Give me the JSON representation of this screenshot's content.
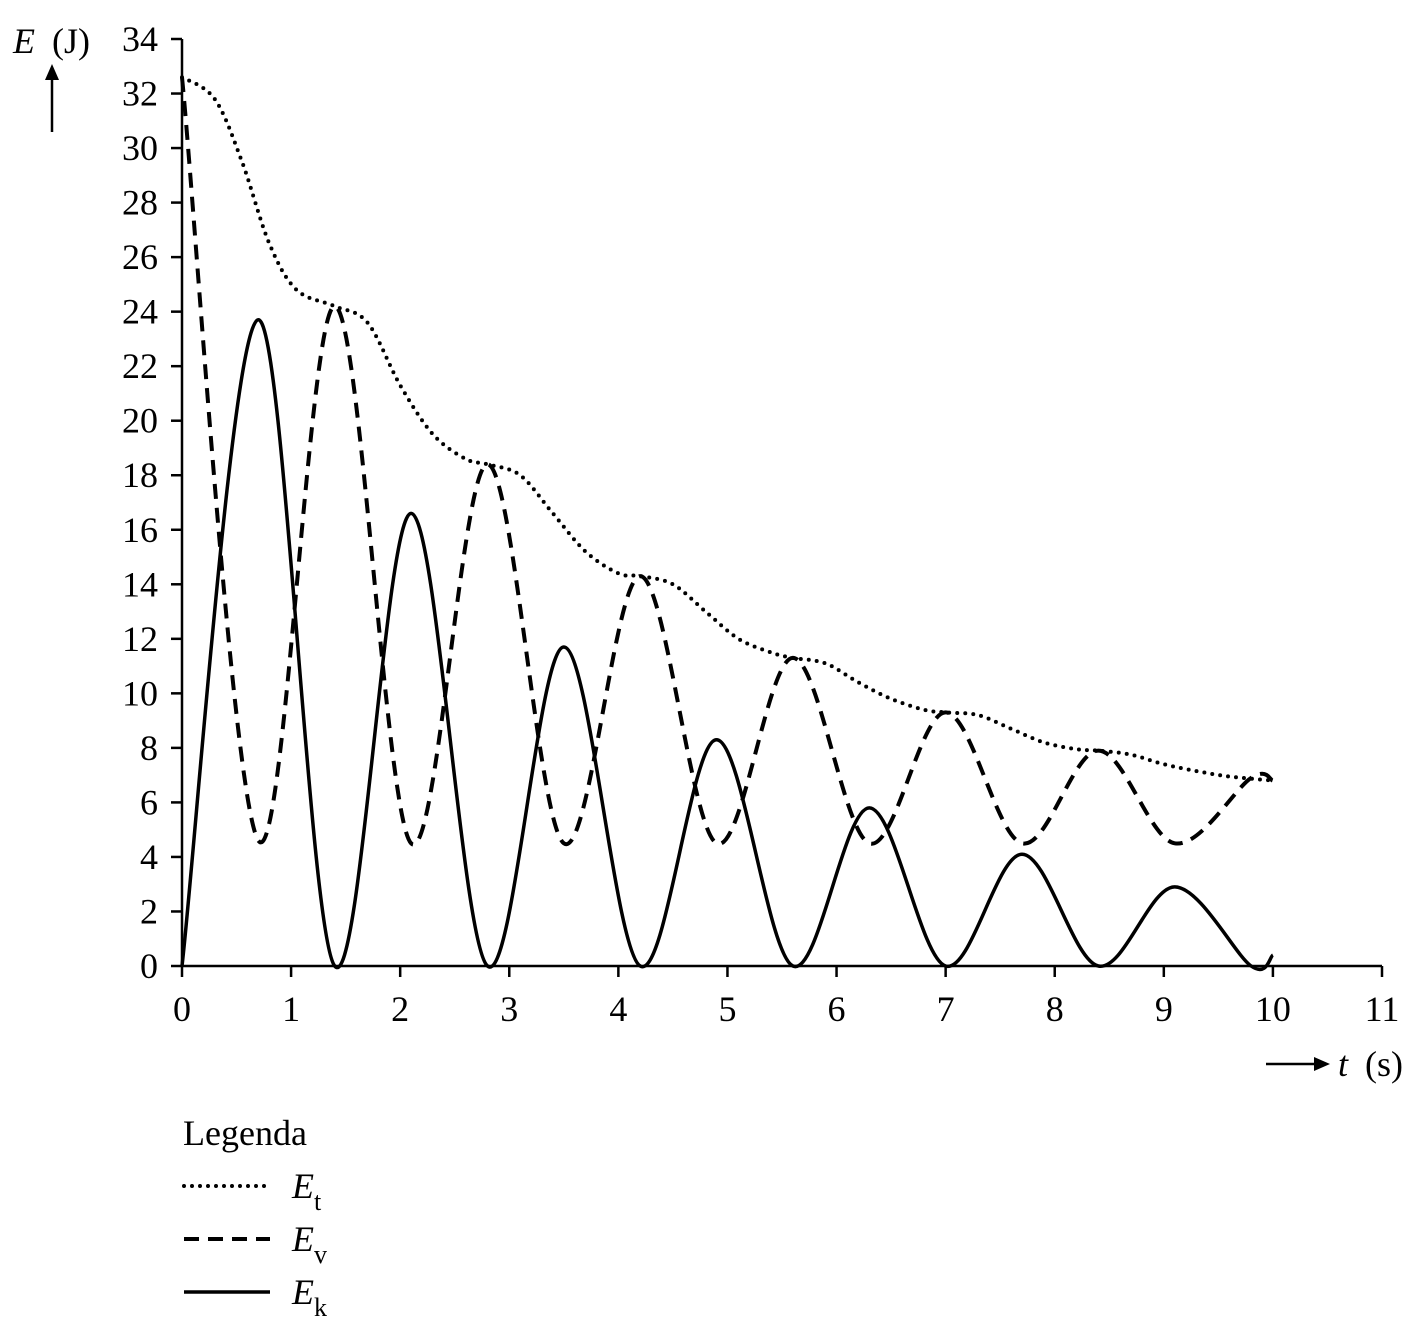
{
  "chart_data": {
    "type": "line",
    "x_label": {
      "symbol": "t",
      "unit": "(s)"
    },
    "y_label": {
      "symbol": "E",
      "unit": "(J)"
    },
    "xlim": [
      0,
      11
    ],
    "ylim": [
      0,
      34
    ],
    "x_ticks": [
      0,
      1,
      2,
      3,
      4,
      5,
      6,
      7,
      8,
      9,
      10,
      11
    ],
    "y_ticks": [
      0,
      2,
      4,
      6,
      8,
      10,
      12,
      14,
      16,
      18,
      20,
      22,
      24,
      26,
      28,
      30,
      32,
      34
    ],
    "grid": false,
    "legend": {
      "title": "Legenda",
      "placement": "bottom-left"
    },
    "series": [
      {
        "name": "E",
        "subscript": "t",
        "style": "dotted",
        "points": [
          [
            0,
            32.6
          ],
          [
            0.3,
            31.8
          ],
          [
            0.55,
            29.5
          ],
          [
            0.8,
            26.5
          ],
          [
            1.05,
            24.8
          ],
          [
            1.4,
            24.2
          ],
          [
            1.7,
            23.6
          ],
          [
            2.0,
            21.3
          ],
          [
            2.3,
            19.5
          ],
          [
            2.6,
            18.6
          ],
          [
            2.8,
            18.4
          ],
          [
            3.1,
            18.0
          ],
          [
            3.4,
            16.6
          ],
          [
            3.7,
            15.2
          ],
          [
            4.0,
            14.4
          ],
          [
            4.2,
            14.3
          ],
          [
            4.5,
            14.0
          ],
          [
            4.8,
            13.0
          ],
          [
            5.1,
            12.0
          ],
          [
            5.4,
            11.5
          ],
          [
            5.6,
            11.3
          ],
          [
            5.9,
            11.1
          ],
          [
            6.2,
            10.4
          ],
          [
            6.5,
            9.8
          ],
          [
            6.8,
            9.4
          ],
          [
            7.0,
            9.3
          ],
          [
            7.3,
            9.2
          ],
          [
            7.6,
            8.7
          ],
          [
            7.9,
            8.2
          ],
          [
            8.2,
            7.95
          ],
          [
            8.4,
            7.9
          ],
          [
            8.7,
            7.75
          ],
          [
            9.0,
            7.4
          ],
          [
            9.3,
            7.15
          ],
          [
            9.6,
            6.95
          ],
          [
            10.0,
            6.8
          ]
        ]
      },
      {
        "name": "E",
        "subscript": "v",
        "style": "dashed",
        "points": [
          [
            0,
            32.6
          ],
          [
            0.7,
            4.6
          ],
          [
            1.4,
            24.2
          ],
          [
            2.1,
            4.5
          ],
          [
            2.8,
            18.4
          ],
          [
            3.5,
            4.5
          ],
          [
            4.2,
            14.3
          ],
          [
            4.9,
            4.5
          ],
          [
            5.6,
            11.3
          ],
          [
            6.3,
            4.5
          ],
          [
            7.0,
            9.3
          ],
          [
            7.7,
            4.5
          ],
          [
            8.4,
            7.9
          ],
          [
            9.1,
            4.5
          ],
          [
            9.8,
            6.9
          ],
          [
            10.0,
            6.8
          ]
        ]
      },
      {
        "name": "E",
        "subscript": "k",
        "style": "solid",
        "points": [
          [
            0,
            0
          ],
          [
            0.7,
            23.7
          ],
          [
            1.4,
            0
          ],
          [
            2.1,
            16.6
          ],
          [
            2.8,
            0
          ],
          [
            3.5,
            11.7
          ],
          [
            4.2,
            0
          ],
          [
            4.9,
            8.3
          ],
          [
            5.6,
            0
          ],
          [
            6.3,
            5.8
          ],
          [
            7.0,
            0
          ],
          [
            7.7,
            4.1
          ],
          [
            8.4,
            0
          ],
          [
            9.1,
            2.9
          ],
          [
            9.8,
            0
          ],
          [
            10.0,
            0.4
          ]
        ]
      }
    ]
  }
}
